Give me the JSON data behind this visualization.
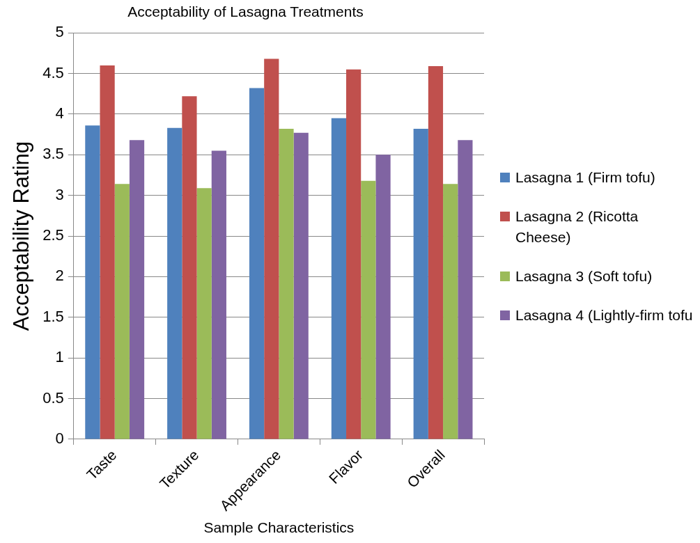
{
  "chart_data": {
    "type": "bar",
    "title": "Acceptability of Lasagna Treatments",
    "xlabel": "Sample Characteristics",
    "ylabel": "Acceptability Rating",
    "categories": [
      "Taste",
      "Texture",
      "Appearance",
      "Flavor",
      "Overall"
    ],
    "series": [
      {
        "name": "Lasagna 1 (Firm tofu)",
        "color": "#4f81bd",
        "values": [
          3.86,
          3.83,
          4.32,
          3.95,
          3.82
        ]
      },
      {
        "name": "Lasagna 2 (Ricotta Cheese)",
        "color": "#c0504d",
        "values": [
          4.6,
          4.22,
          4.68,
          4.55,
          4.59
        ]
      },
      {
        "name": "Lasagna 3 (Soft tofu)",
        "color": "#9bbb59",
        "values": [
          3.14,
          3.09,
          3.82,
          3.18,
          3.14
        ]
      },
      {
        "name": "Lasagna 4 (Lightly-firm tofu",
        "color": "#8064a2",
        "values": [
          3.68,
          3.55,
          3.77,
          3.5,
          3.68
        ]
      }
    ],
    "ylim": [
      0,
      5
    ],
    "yticks": [
      0,
      0.5,
      1,
      1.5,
      2,
      2.5,
      3,
      3.5,
      4,
      4.5,
      5
    ],
    "grid": "y",
    "legend": "right"
  }
}
